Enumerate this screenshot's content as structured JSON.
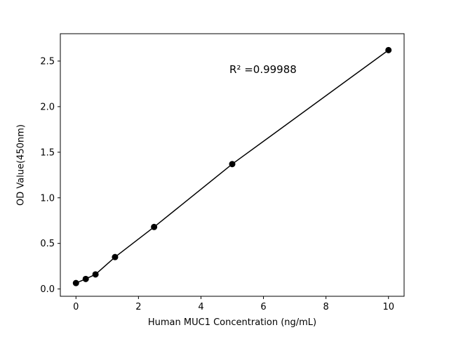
{
  "chart_data": {
    "type": "scatter",
    "title": "",
    "xlabel": "Human MUC1 Concentration (ng/mL)",
    "ylabel": "OD Value(450nm)",
    "annotation": "R² =0.99988",
    "x": [
      0,
      0.313,
      0.625,
      1.25,
      2.5,
      5,
      10
    ],
    "y": [
      0.065,
      0.11,
      0.16,
      0.35,
      0.68,
      1.37,
      2.62
    ],
    "xlim": [
      -0.5,
      10.5
    ],
    "ylim": [
      -0.08,
      2.8
    ],
    "xticks": [
      0,
      2,
      4,
      6,
      8,
      10
    ],
    "xtick_labels": [
      "0",
      "2",
      "4",
      "6",
      "8",
      "10"
    ],
    "yticks": [
      0.0,
      0.5,
      1.0,
      1.5,
      2.0,
      2.5
    ],
    "ytick_labels": [
      "0.0",
      "0.5",
      "1.0",
      "1.5",
      "2.0",
      "2.5"
    ],
    "grid": false,
    "legend": null,
    "line_color": "#000000",
    "marker_color": "#000000",
    "marker_radius": 4.5,
    "axis_color": "#000000"
  }
}
